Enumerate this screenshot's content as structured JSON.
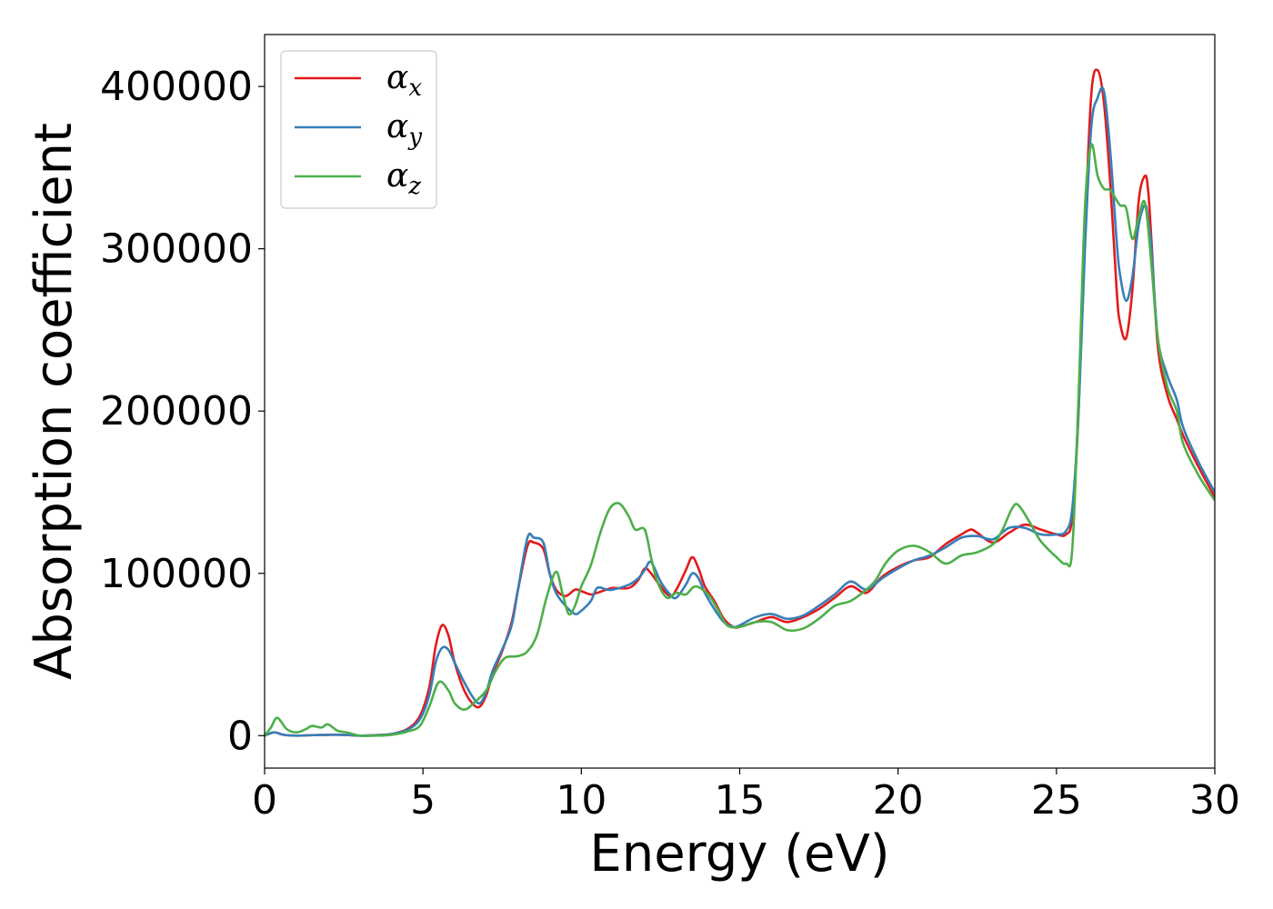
{
  "chart_data": {
    "type": "line",
    "title": "",
    "xlabel": "Energy (eV)",
    "ylabel": "Absorption coefficient",
    "xlim": [
      0,
      30
    ],
    "ylim": [
      -20000,
      432000
    ],
    "xticks": [
      0,
      5,
      10,
      15,
      20,
      25,
      30
    ],
    "yticks": [
      0,
      100000,
      200000,
      300000,
      400000
    ],
    "grid": false,
    "legend_position": "top-left",
    "series": [
      {
        "name": "αx",
        "name_base": "α",
        "name_sub": "x",
        "color": "#e41a1c",
        "x": [
          0,
          0.3,
          0.6,
          1.0,
          1.5,
          2.0,
          2.5,
          3.0,
          3.5,
          4.0,
          4.5,
          4.9,
          5.2,
          5.4,
          5.6,
          5.8,
          6.0,
          6.3,
          6.6,
          6.8,
          7.0,
          7.2,
          7.5,
          7.8,
          8.0,
          8.3,
          8.5,
          8.8,
          9.0,
          9.2,
          9.5,
          9.8,
          10.0,
          10.3,
          10.5,
          10.8,
          11.0,
          11.5,
          11.8,
          12.0,
          12.2,
          12.5,
          12.8,
          13.0,
          13.3,
          13.5,
          13.7,
          13.9,
          14.2,
          14.5,
          14.8,
          15.0,
          15.5,
          16.0,
          16.5,
          17.0,
          17.5,
          18.0,
          18.5,
          19.0,
          19.5,
          20.0,
          20.5,
          21.0,
          21.5,
          22.0,
          22.3,
          22.5,
          23.0,
          23.5,
          24.0,
          24.5,
          25.0,
          25.3,
          25.5,
          25.7,
          25.9,
          26.1,
          26.3,
          26.5,
          26.7,
          26.9,
          27.0,
          27.2,
          27.4,
          27.6,
          27.8,
          27.9,
          28.0,
          28.2,
          28.5,
          28.8,
          29.0,
          29.5,
          30.0
        ],
        "values": [
          0,
          2000,
          500,
          0,
          300,
          500,
          500,
          0,
          300,
          1000,
          4000,
          12000,
          30000,
          55000,
          68000,
          62000,
          45000,
          28000,
          19000,
          18000,
          25000,
          38000,
          52000,
          70000,
          90000,
          117000,
          119000,
          115000,
          100000,
          90000,
          86000,
          90000,
          89000,
          87000,
          88000,
          90000,
          91000,
          91000,
          96000,
          103000,
          100000,
          92000,
          86000,
          90000,
          102000,
          110000,
          103000,
          92000,
          83000,
          72000,
          67000,
          67000,
          70000,
          73000,
          70000,
          73000,
          78000,
          85000,
          92000,
          88000,
          98000,
          104000,
          108000,
          110000,
          118000,
          124000,
          127000,
          125000,
          119000,
          125000,
          130000,
          127000,
          124000,
          124000,
          135000,
          200000,
          310000,
          395000,
          410000,
          390000,
          340000,
          275000,
          255000,
          245000,
          275000,
          330000,
          345000,
          335000,
          305000,
          240000,
          210000,
          195000,
          185000,
          165000,
          147000
        ]
      },
      {
        "name": "αy",
        "name_base": "α",
        "name_sub": "y",
        "color": "#377eb8",
        "x": [
          0,
          0.3,
          0.6,
          1.0,
          1.5,
          2.0,
          2.5,
          3.0,
          3.5,
          4.0,
          4.5,
          4.9,
          5.2,
          5.4,
          5.6,
          5.8,
          6.0,
          6.3,
          6.6,
          6.8,
          7.0,
          7.2,
          7.5,
          7.8,
          8.0,
          8.3,
          8.5,
          8.8,
          9.0,
          9.2,
          9.5,
          9.8,
          10.0,
          10.3,
          10.5,
          10.8,
          11.0,
          11.5,
          11.8,
          12.0,
          12.2,
          12.5,
          12.8,
          13.0,
          13.3,
          13.5,
          13.7,
          13.9,
          14.2,
          14.5,
          14.8,
          15.0,
          15.5,
          16.0,
          16.5,
          17.0,
          17.5,
          18.0,
          18.5,
          19.0,
          19.5,
          20.0,
          20.5,
          21.0,
          21.5,
          22.0,
          22.5,
          23.0,
          23.5,
          24.0,
          24.5,
          25.0,
          25.3,
          25.5,
          25.7,
          25.9,
          26.1,
          26.3,
          26.5,
          26.7,
          26.9,
          27.0,
          27.2,
          27.4,
          27.6,
          27.8,
          27.9,
          28.0,
          28.2,
          28.5,
          28.8,
          29.0,
          29.5,
          30.0
        ],
        "values": [
          0,
          2000,
          500,
          0,
          300,
          500,
          500,
          0,
          300,
          1000,
          3500,
          10000,
          25000,
          45000,
          54000,
          53000,
          45000,
          33000,
          23000,
          20000,
          27000,
          40000,
          53000,
          68000,
          90000,
          122000,
          122000,
          119000,
          100000,
          88000,
          80000,
          75000,
          77000,
          83000,
          91000,
          90000,
          90000,
          93000,
          97000,
          102000,
          107000,
          95000,
          87000,
          85000,
          93000,
          100000,
          97000,
          88000,
          78000,
          70000,
          67000,
          68000,
          73000,
          75000,
          72000,
          74000,
          80000,
          87000,
          95000,
          90000,
          97000,
          103000,
          108000,
          111000,
          116000,
          122000,
          123000,
          121000,
          128000,
          128000,
          124000,
          124000,
          126000,
          140000,
          200000,
          300000,
          375000,
          393000,
          397000,
          360000,
          305000,
          285000,
          268000,
          283000,
          315000,
          327000,
          317000,
          300000,
          245000,
          222000,
          207000,
          190000,
          168000,
          150000
        ]
      },
      {
        "name": "αz",
        "name_base": "α",
        "name_sub": "z",
        "color": "#4daf4a",
        "x": [
          0,
          0.2,
          0.4,
          0.7,
          1.0,
          1.3,
          1.5,
          1.8,
          2.0,
          2.3,
          2.6,
          3.0,
          3.5,
          4.0,
          4.5,
          4.9,
          5.2,
          5.5,
          5.8,
          6.0,
          6.3,
          6.6,
          7.0,
          7.3,
          7.6,
          8.0,
          8.3,
          8.6,
          8.9,
          9.2,
          9.4,
          9.6,
          9.8,
          10.0,
          10.3,
          10.6,
          10.9,
          11.2,
          11.5,
          11.7,
          12.0,
          12.2,
          12.4,
          12.7,
          13.0,
          13.3,
          13.6,
          14.0,
          14.3,
          14.6,
          15.0,
          15.5,
          16.0,
          16.5,
          17.0,
          17.5,
          18.0,
          18.5,
          19.0,
          19.3,
          19.6,
          20.0,
          20.5,
          21.0,
          21.5,
          22.0,
          22.5,
          23.0,
          23.3,
          23.6,
          23.8,
          24.2,
          24.5,
          25.0,
          25.3,
          25.5,
          25.7,
          25.9,
          26.1,
          26.3,
          26.5,
          26.7,
          27.0,
          27.2,
          27.4,
          27.6,
          27.8,
          28.0,
          28.2,
          28.5,
          28.8,
          29.0,
          29.5,
          30.0
        ],
        "values": [
          0,
          5000,
          11000,
          4000,
          2000,
          4000,
          6000,
          5000,
          7000,
          3000,
          2000,
          0,
          0,
          500,
          2500,
          6000,
          18000,
          33000,
          28000,
          20000,
          16000,
          20000,
          28000,
          40000,
          48000,
          49000,
          52000,
          62000,
          85000,
          101000,
          88000,
          75000,
          80000,
          92000,
          105000,
          125000,
          140000,
          143000,
          135000,
          127000,
          127000,
          110000,
          95000,
          85000,
          88000,
          87000,
          92000,
          87000,
          78000,
          68000,
          67000,
          70000,
          70000,
          65000,
          66000,
          72000,
          80000,
          83000,
          90000,
          96000,
          106000,
          114000,
          117000,
          113000,
          106000,
          111000,
          113000,
          118000,
          127000,
          140000,
          142000,
          130000,
          120000,
          110000,
          106000,
          115000,
          210000,
          325000,
          364000,
          345000,
          337000,
          336000,
          327000,
          325000,
          306000,
          320000,
          328000,
          290000,
          245000,
          215000,
          200000,
          180000,
          160000,
          145000
        ]
      }
    ]
  }
}
